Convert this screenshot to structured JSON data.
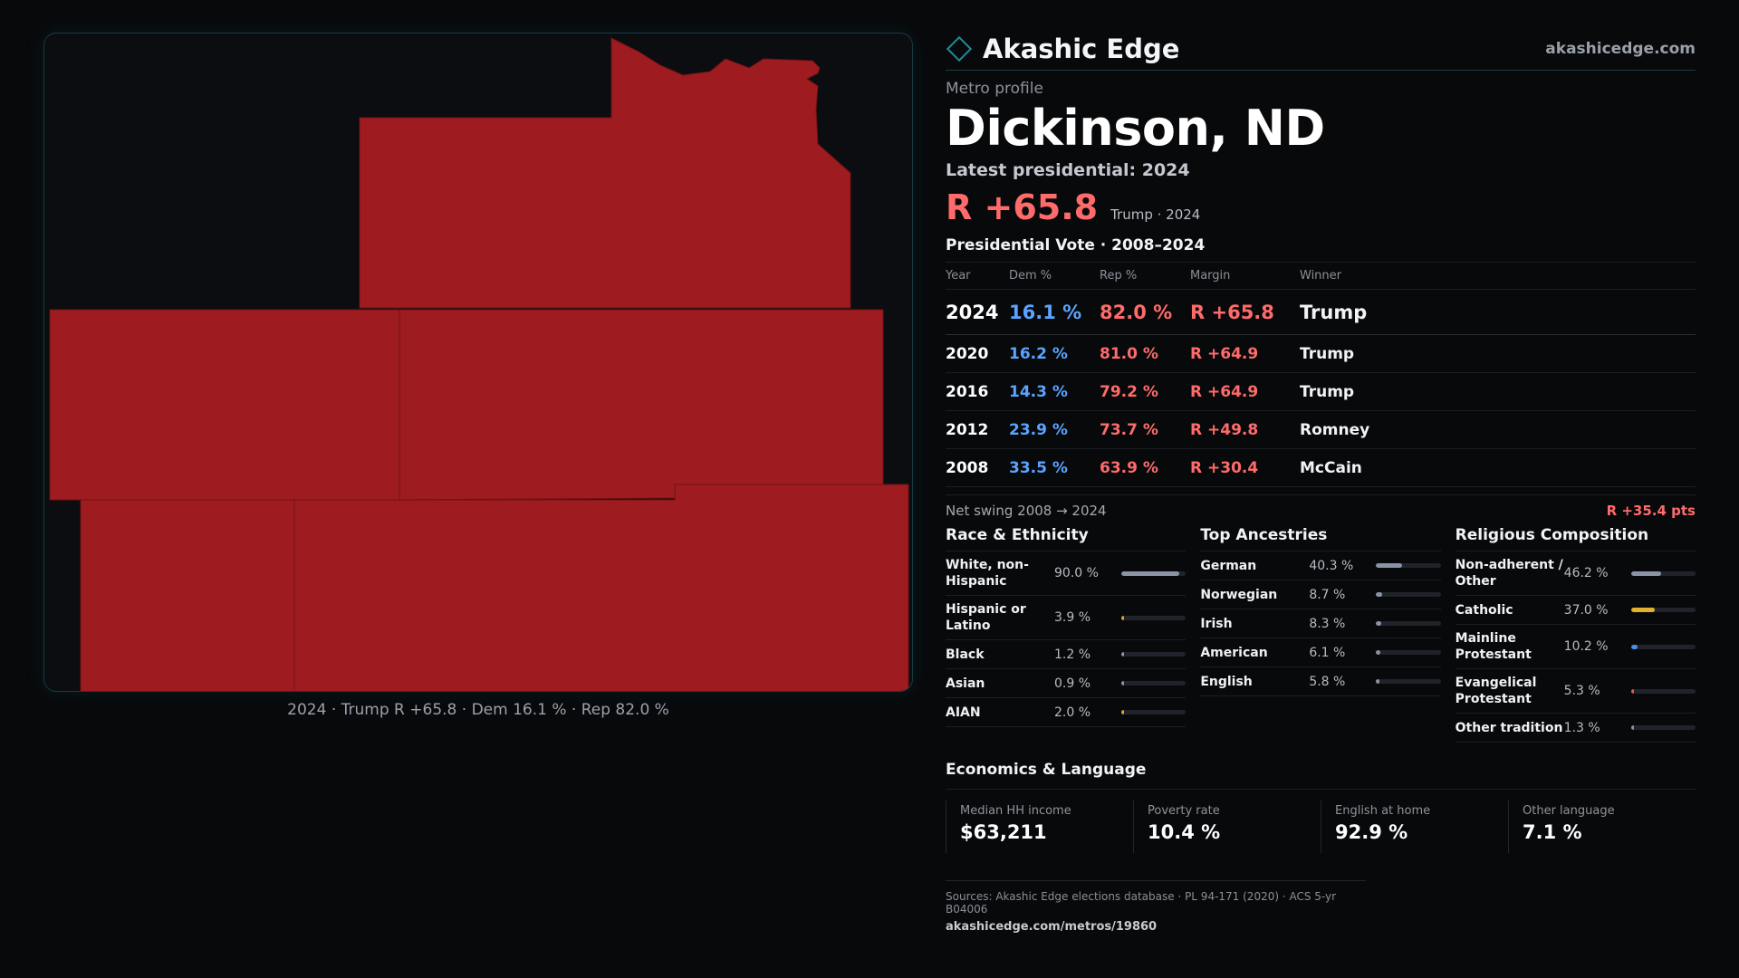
{
  "map": {
    "caption": "2024 · Trump R +65.8 · Dem 16.1 % · Rep 82.0 %",
    "fill_color": "#9e1c1f",
    "background": "#0c0d10"
  },
  "brand": {
    "name": "Akashic Edge",
    "url": "akashicedge.com",
    "icon": "diamond-outline-icon"
  },
  "profile": {
    "eyebrow": "Metro profile",
    "title": "Dickinson, ND",
    "latest_label": "Latest presidential: 2024",
    "headline_margin": "R +65.8",
    "headline_meta": "Trump · 2024"
  },
  "vote_history": {
    "title": "Presidential Vote · 2008–2024",
    "headers": {
      "year": "Year",
      "dem": "Dem %",
      "rep": "Rep %",
      "margin": "Margin",
      "winner": "Winner"
    },
    "rows": [
      {
        "year": "2024",
        "dem": "16.1 %",
        "rep": "82.0 %",
        "margin": "R +65.8",
        "winner": "Trump"
      },
      {
        "year": "2020",
        "dem": "16.2 %",
        "rep": "81.0 %",
        "margin": "R +64.9",
        "winner": "Trump"
      },
      {
        "year": "2016",
        "dem": "14.3 %",
        "rep": "79.2 %",
        "margin": "R +64.9",
        "winner": "Trump"
      },
      {
        "year": "2012",
        "dem": "23.9 %",
        "rep": "73.7 %",
        "margin": "R +49.8",
        "winner": "Romney"
      },
      {
        "year": "2008",
        "dem": "33.5 %",
        "rep": "63.9 %",
        "margin": "R +30.4",
        "winner": "McCain"
      }
    ],
    "swing_label": "Net swing 2008 → 2024",
    "swing_value": "R +35.4 pts"
  },
  "race": {
    "title": "Race & Ethnicity",
    "items": [
      {
        "label": "White, non-Hispanic",
        "pct_text": "90.0 %",
        "value": 90.0,
        "color": "#8a94a6"
      },
      {
        "label": "Hispanic or Latino",
        "pct_text": "3.9 %",
        "value": 3.9,
        "color": "#e2a22e"
      },
      {
        "label": "Black",
        "pct_text": "1.2 %",
        "value": 1.2,
        "color": "#8a94a6"
      },
      {
        "label": "Asian",
        "pct_text": "0.9 %",
        "value": 0.9,
        "color": "#8a94a6"
      },
      {
        "label": "AIAN",
        "pct_text": "2.0 %",
        "value": 2.0,
        "color": "#e2a22e"
      }
    ]
  },
  "ancestry": {
    "title": "Top Ancestries",
    "items": [
      {
        "label": "German",
        "pct_text": "40.3 %",
        "value": 40.3,
        "color": "#8a94a6"
      },
      {
        "label": "Norwegian",
        "pct_text": "8.7 %",
        "value": 8.7,
        "color": "#8a94a6"
      },
      {
        "label": "Irish",
        "pct_text": "8.3 %",
        "value": 8.3,
        "color": "#8a94a6"
      },
      {
        "label": "American",
        "pct_text": "6.1 %",
        "value": 6.1,
        "color": "#8a94a6"
      },
      {
        "label": "English",
        "pct_text": "5.8 %",
        "value": 5.8,
        "color": "#8a94a6"
      }
    ]
  },
  "religion": {
    "title": "Religious Composition",
    "items": [
      {
        "label": "Non-adherent / Other",
        "pct_text": "46.2 %",
        "value": 46.2,
        "color": "#8a94a6"
      },
      {
        "label": "Catholic",
        "pct_text": "37.0 %",
        "value": 37.0,
        "color": "#e2b22e"
      },
      {
        "label": "Mainline Protestant",
        "pct_text": "10.2 %",
        "value": 10.2,
        "color": "#4a90e2"
      },
      {
        "label": "Evangelical Protestant",
        "pct_text": "5.3 %",
        "value": 5.3,
        "color": "#e05a5a"
      },
      {
        "label": "Other tradition",
        "pct_text": "1.3 %",
        "value": 1.3,
        "color": "#8a94a6"
      }
    ]
  },
  "economics": {
    "title": "Economics & Language",
    "items": [
      {
        "label": "Median HH income",
        "value": "$63,211"
      },
      {
        "label": "Poverty rate",
        "value": "10.4 %"
      },
      {
        "label": "English at home",
        "value": "92.9 %"
      },
      {
        "label": "Other language",
        "value": "7.1 %"
      }
    ]
  },
  "sources": {
    "text": "Sources: Akashic Edge elections database · PL 94-171 (2020) · ACS 5-yr B04006",
    "url": "akashicedge.com/metros/19860"
  }
}
